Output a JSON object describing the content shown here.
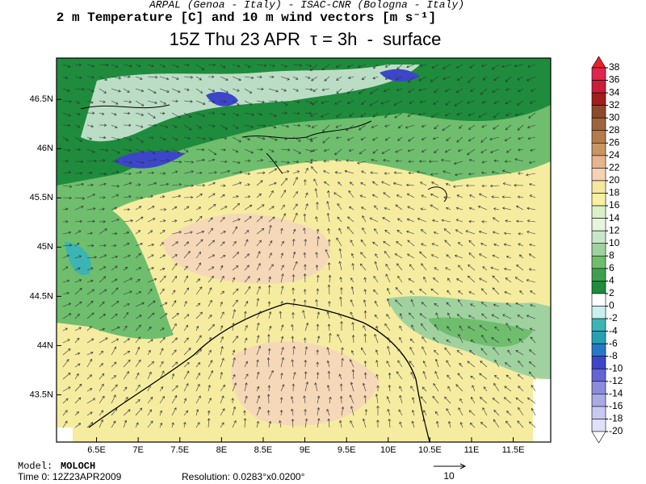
{
  "header": {
    "credits": "ARPAL (Genoa - Italy)  -  ISAC-CNR (Bologna - Italy)",
    "variable": "2 m Temperature [C] and 10 m wind vectors [m s⁻¹]",
    "title": "15Z Thu 23 APR  τ = 3h  -  surface"
  },
  "map": {
    "xlim": [
      6.02,
      11.95
    ],
    "ylim": [
      43.02,
      46.92
    ],
    "xticks": [
      {
        "value": 6.5,
        "label": "6.5E"
      },
      {
        "value": 7,
        "label": "7E"
      },
      {
        "value": 7.5,
        "label": "7.5E"
      },
      {
        "value": 8,
        "label": "8E"
      },
      {
        "value": 8.5,
        "label": "8.5E"
      },
      {
        "value": 9,
        "label": "9E"
      },
      {
        "value": 9.5,
        "label": "9.5E"
      },
      {
        "value": 10,
        "label": "10E"
      },
      {
        "value": 10.5,
        "label": "10.5E"
      },
      {
        "value": 11,
        "label": "11E"
      },
      {
        "value": 11.5,
        "label": "11.5E"
      }
    ],
    "yticks": [
      {
        "value": 46.5,
        "label": "46.5N"
      },
      {
        "value": 46,
        "label": "46N"
      },
      {
        "value": 45.5,
        "label": "45.5N"
      },
      {
        "value": 45,
        "label": "45N"
      },
      {
        "value": 44.5,
        "label": "44.5N"
      },
      {
        "value": 44,
        "label": "44N"
      },
      {
        "value": 43.5,
        "label": "43.5N"
      }
    ]
  },
  "colorbar": {
    "levels": [
      38,
      36,
      34,
      32,
      30,
      28,
      26,
      24,
      22,
      20,
      18,
      16,
      14,
      12,
      10,
      8,
      6,
      4,
      2,
      0,
      -2,
      -4,
      -6,
      -8,
      -10,
      -12,
      -14,
      -16,
      -18,
      -20
    ],
    "colors": [
      "#e8202a",
      "#e0254d",
      "#c81e3a",
      "#a01e1e",
      "#8c4a2a",
      "#a0643c",
      "#b47c4c",
      "#c89664",
      "#e6b48c",
      "#f5d2b4",
      "#f5e6a0",
      "#f8f0a0",
      "#dcf0c8",
      "#e6f5dc",
      "#c8e6c8",
      "#a0d2a0",
      "#6ebe6e",
      "#3ca050",
      "#1e8c3c",
      "#ffffff",
      "#c8f0f0",
      "#3cb4b4",
      "#28a0b4",
      "#2878c8",
      "#3c46c8",
      "#6464d2",
      "#8c8cdc",
      "#aaaae6",
      "#c8c8f0",
      "#e0e0f8",
      "#ffffff"
    ]
  },
  "footer": {
    "model_label": "Model:",
    "model": "MOLOCH",
    "time": "Time 0: 12Z23APR2009",
    "resolution": "Resolution: 0.0283°x0.0200°",
    "scale": "10"
  }
}
